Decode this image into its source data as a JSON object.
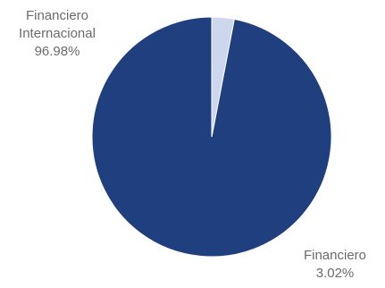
{
  "chart_data": {
    "type": "pie",
    "slices": [
      {
        "name": "Financiero Internacional",
        "name_lines": [
          "Financiero",
          "Internacional"
        ],
        "value": 96.98,
        "value_label": "96.98%",
        "color": "#1f3f7e"
      },
      {
        "name": "Financiero",
        "name_lines": [
          "Financiero"
        ],
        "value": 3.02,
        "value_label": "3.02%",
        "color": "#ccd6ec"
      }
    ],
    "legend": "none"
  }
}
